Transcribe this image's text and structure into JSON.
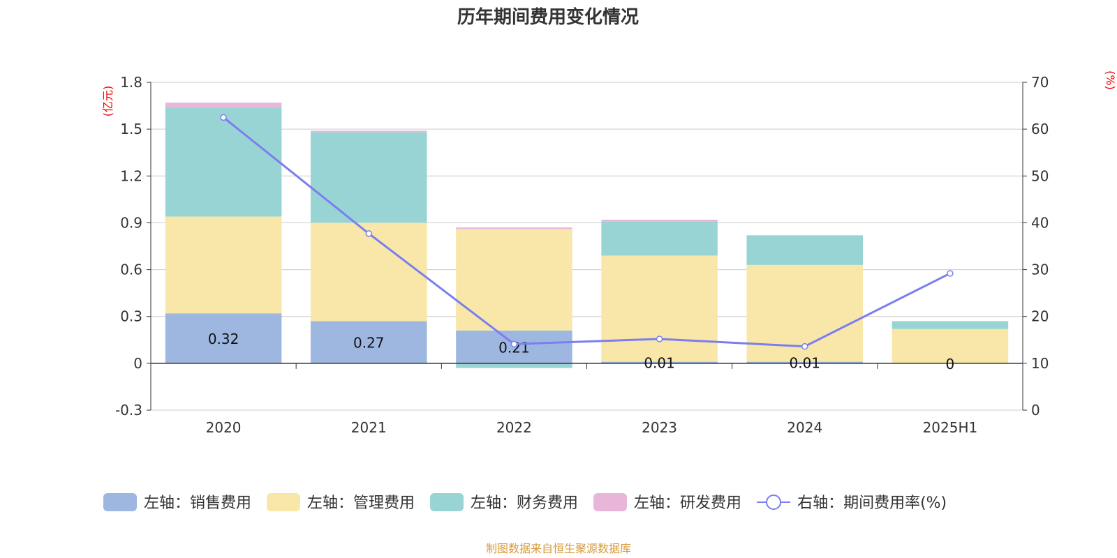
{
  "chart_data": {
    "type": "bar",
    "title": "历年期间费用变化情况",
    "left_unit": "(亿元)",
    "right_unit": "(%)",
    "categories": [
      "2020",
      "2021",
      "2022",
      "2023",
      "2024",
      "2025H1"
    ],
    "left_axis": {
      "ylim": [
        -0.3,
        1.8
      ],
      "ticks": [
        -0.3,
        0,
        0.3,
        0.6,
        0.9,
        1.2,
        1.5,
        1.8
      ]
    },
    "right_axis": {
      "ylim": [
        0,
        70
      ],
      "ticks": [
        0,
        10,
        20,
        30,
        40,
        50,
        60,
        70
      ]
    },
    "grid": true,
    "legend_position": "bottom",
    "series": [
      {
        "name": "左轴：销售费用",
        "axis": "left",
        "kind": "bar",
        "color": "#9db7e0",
        "values": [
          0.32,
          0.27,
          0.21,
          0.01,
          0.01,
          0
        ]
      },
      {
        "name": "左轴：管理费用",
        "axis": "left",
        "kind": "bar",
        "color": "#f8e7a8",
        "values": [
          0.62,
          0.63,
          0.65,
          0.68,
          0.62,
          0.22
        ]
      },
      {
        "name": "左轴：财务费用",
        "axis": "left",
        "kind": "bar",
        "color": "#98d4d4",
        "values": [
          0.7,
          0.58,
          -0.03,
          0.22,
          0.19,
          0.05
        ]
      },
      {
        "name": "左轴：研发费用",
        "axis": "left",
        "kind": "bar",
        "color": "#e8b6d9",
        "values": [
          0.03,
          0.01,
          0.01,
          0.01,
          0,
          0
        ]
      },
      {
        "name": "右轴：期间费用率(%)",
        "axis": "right",
        "kind": "line",
        "color": "#7b7ef0",
        "values": [
          62.5,
          37.7,
          14.1,
          15.2,
          13.6,
          29.2
        ]
      }
    ],
    "data_labels": [
      "0.32",
      "0.27",
      "0.21",
      "0.01",
      "0.01",
      "0"
    ]
  },
  "footer": {
    "source": "制图数据来自恒生聚源数据库"
  }
}
